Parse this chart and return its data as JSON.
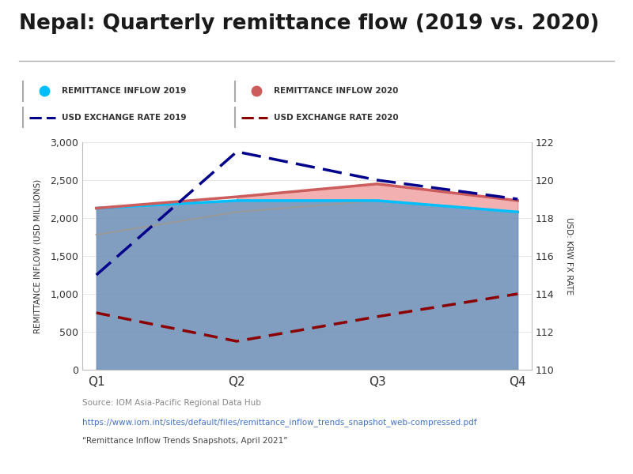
{
  "title": "Nepal: Quarterly remittance flow (2019 vs. 2020)",
  "quarters": [
    "Q1",
    "Q2",
    "Q3",
    "Q4"
  ],
  "x": [
    0,
    1,
    2,
    3
  ],
  "remittance_2019": [
    2130,
    2230,
    2230,
    2080
  ],
  "remittance_2020": [
    2130,
    2280,
    2450,
    2230
  ],
  "gray_curve": [
    1780,
    2080,
    2230,
    2080
  ],
  "fx_2019": [
    115.0,
    121.5,
    120.0,
    119.0
  ],
  "fx_2020": [
    113.0,
    111.5,
    112.8,
    114.0
  ],
  "ylim_left": [
    0,
    3000
  ],
  "ylim_right": [
    110,
    122
  ],
  "yticks_left": [
    0,
    500,
    1000,
    1500,
    2000,
    2500,
    3000
  ],
  "yticks_right": [
    110,
    112,
    114,
    116,
    118,
    120,
    122
  ],
  "color_2019_line": "#00BFFF",
  "color_2020_line": "#CD5C5C",
  "color_fx_2019": "#00008B",
  "color_fx_2020": "#8B0000",
  "color_overlap_fill": "#6B8DB5",
  "color_2019_only_fill": "#87CEEB",
  "color_2020_only_fill": "#E87070",
  "color_gray_curve": "#999999",
  "color_bg_chart": "#FFFFFF",
  "color_bg_legend": "#EEEEEE",
  "color_separator": "#AAAAAA",
  "ylabel_left": "REMITTANCE INFLOW (USD MILLIONS)",
  "ylabel_right": "USD: KRW FX RATE",
  "source_text": "Source: IOM Asia-Pacific Regional Data Hub",
  "url_text": "https://www.iom.int/sites/default/files/remittance_inflow_trends_snapshot_web-compressed.pdf",
  "quote_text": "“Remittance Inflow Trends Snapshots, April 2021”",
  "legend_labels": [
    "REMITTANCE INFLOW 2019",
    "REMITTANCE INFLOW 2020",
    "USD EXCHANGE RATE 2019",
    "USD EXCHANGE RATE 2020"
  ]
}
